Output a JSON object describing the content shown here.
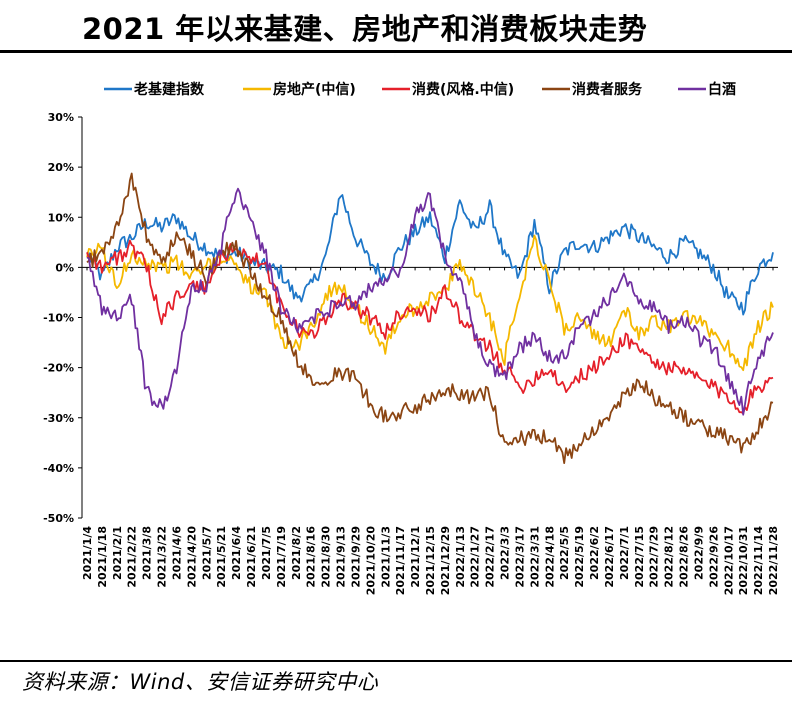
{
  "header": {
    "title": "2021 年以来基建、房地产和消费板块走势"
  },
  "footer": {
    "source": "资料来源：Wind、安信证券研究中心"
  },
  "chart_data": {
    "type": "line",
    "ylim": [
      -50,
      30
    ],
    "yticks": [
      30,
      20,
      10,
      0,
      -10,
      -20,
      -30,
      -40,
      -50
    ],
    "ytick_labels": [
      "30%",
      "20%",
      "10%",
      "0%",
      "-10%",
      "-20%",
      "-30%",
      "-40%",
      "-50%"
    ],
    "legend_position": "top",
    "x": [
      "2021/1/4",
      "2021/1/18",
      "2021/2/1",
      "2021/2/22",
      "2021/3/8",
      "2021/3/22",
      "2021/4/6",
      "2021/4/20",
      "2021/5/7",
      "2021/5/21",
      "2021/6/4",
      "2021/6/21",
      "2021/7/5",
      "2021/7/19",
      "2021/8/2",
      "2021/8/16",
      "2021/8/30",
      "2021/9/13",
      "2021/9/29",
      "2021/10/20",
      "2021/11/3",
      "2021/11/17",
      "2021/12/1",
      "2021/12/15",
      "2021/12/29",
      "2022/1/13",
      "2022/1/27",
      "2022/2/17",
      "2022/3/3",
      "2022/3/17",
      "2022/3/31",
      "2022/4/18",
      "2022/5/5",
      "2022/5/19",
      "2022/6/2",
      "2022/6/17",
      "2022/7/1",
      "2022/7/15",
      "2022/7/29",
      "2022/8/12",
      "2022/8/26",
      "2022/9/9",
      "2022/9/26",
      "2022/10/17",
      "2022/10/31",
      "2022/11/14",
      "2022/11/28"
    ],
    "series": [
      {
        "name": "老基建指数",
        "color": "#1F77C8",
        "values": [
          3,
          -2,
          4,
          6,
          9,
          8,
          10,
          6,
          4,
          2,
          3,
          1,
          0,
          -1,
          -6,
          -4,
          2,
          15,
          6,
          1,
          -2,
          4,
          7,
          10,
          2,
          13,
          7,
          12,
          2,
          -2,
          9,
          -4,
          3,
          5,
          4,
          6,
          8,
          6,
          4,
          2,
          5,
          3,
          0,
          -6,
          -8,
          0,
          3
        ]
      },
      {
        "name": "房地产(中信)",
        "color": "#F5B800",
        "values": [
          2,
          4,
          -4,
          3,
          1,
          0,
          1,
          -2,
          0,
          2,
          1,
          -4,
          -6,
          -14,
          -16,
          -12,
          -6,
          -3,
          -8,
          -12,
          -16,
          -10,
          -8,
          -6,
          -5,
          1,
          -4,
          -10,
          -18,
          -5,
          6,
          -3,
          -12,
          -10,
          -14,
          -15,
          -8,
          -14,
          -10,
          -12,
          -10,
          -11,
          -13,
          -16,
          -20,
          -12,
          -8
        ]
      },
      {
        "name": "消费(风格.中信)",
        "color": "#E5202A",
        "values": [
          3,
          0,
          2,
          4,
          0,
          -10,
          -6,
          -4,
          -4,
          2,
          4,
          2,
          0,
          -8,
          -12,
          -14,
          -10,
          -6,
          -8,
          -10,
          -13,
          -9,
          -8,
          -10,
          -4,
          -10,
          -14,
          -16,
          -20,
          -24,
          -22,
          -20,
          -24,
          -22,
          -20,
          -18,
          -14,
          -16,
          -19,
          -20,
          -21,
          -22,
          -24,
          -26,
          -28,
          -24,
          -22
        ]
      },
      {
        "name": "消费者服务",
        "color": "#8B4513",
        "values": [
          1,
          3,
          8,
          18,
          6,
          1,
          6,
          3,
          -2,
          3,
          4,
          -1,
          -6,
          -10,
          -18,
          -22,
          -22,
          -21,
          -22,
          -27,
          -30,
          -29,
          -28,
          -26,
          -24,
          -25,
          -26,
          -25,
          -36,
          -34,
          -34,
          -34,
          -38,
          -35,
          -32,
          -30,
          -26,
          -22,
          -26,
          -28,
          -30,
          -31,
          -33,
          -34,
          -36,
          -32,
          -27
        ]
      },
      {
        "name": "白酒",
        "color": "#7030A0",
        "values": [
          2,
          -8,
          -10,
          -6,
          -25,
          -28,
          -20,
          -4,
          -4,
          4,
          16,
          10,
          2,
          -8,
          -12,
          -10,
          -9,
          -6,
          -8,
          -4,
          -2,
          -1,
          10,
          14,
          2,
          -2,
          -14,
          -20,
          -22,
          -16,
          -14,
          -18,
          -18,
          -12,
          -10,
          -6,
          -1,
          -6,
          -8,
          -12,
          -10,
          -14,
          -16,
          -22,
          -28,
          -18,
          -13
        ]
      }
    ]
  }
}
